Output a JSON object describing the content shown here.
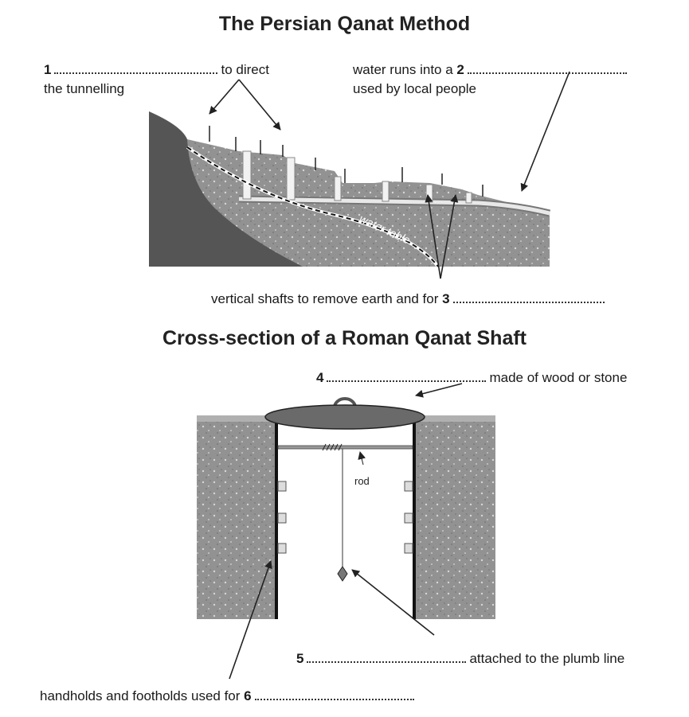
{
  "persian": {
    "title": "The Persian Qanat Method",
    "label_1": {
      "number": "1",
      "after": "to direct",
      "line2": "the tunnelling"
    },
    "label_2": {
      "before": "water runs into a",
      "number": "2",
      "line2": "used by local people"
    },
    "label_3": {
      "before": "vertical shafts to remove earth and for",
      "number": "3"
    },
    "water_table": "water table"
  },
  "roman": {
    "title": "Cross-section of a Roman Qanat Shaft",
    "label_4": {
      "number": "4",
      "after": "made of wood or stone"
    },
    "rod": "rod",
    "label_5": {
      "number": "5",
      "after": "attached to the plumb line"
    },
    "label_6": {
      "before": "handholds and footholds used for",
      "number": "6"
    }
  }
}
